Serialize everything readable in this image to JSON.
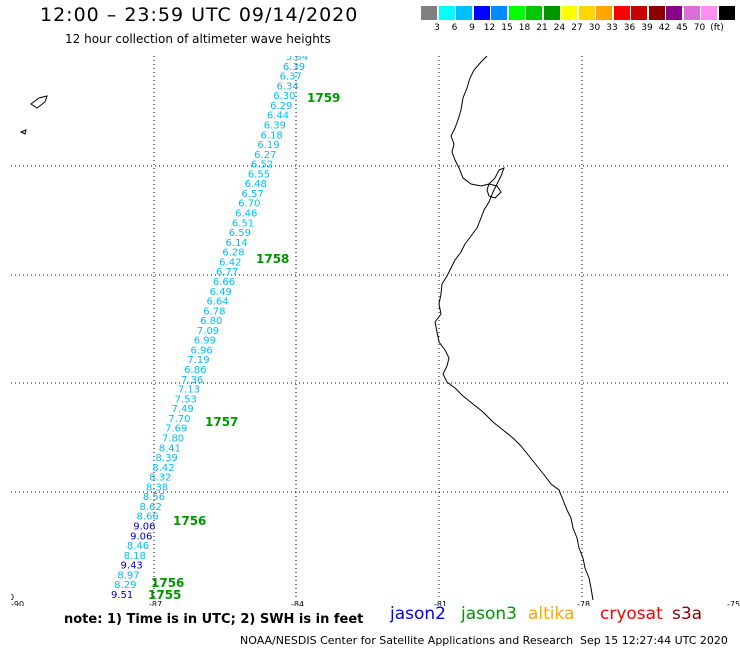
{
  "header": {
    "title": "12:00 – 23:59 UTC 09/14/2020",
    "subtitle": "12 hour collection of altimeter wave heights"
  },
  "legend": {
    "colors": [
      "#808080",
      "#00ffff",
      "#00bfff",
      "#0000ff",
      "#008bff",
      "#00ff00",
      "#00c800",
      "#009600",
      "#ffff00",
      "#ffd700",
      "#ffa500",
      "#ff0000",
      "#c80000",
      "#8b0000",
      "#8b008b",
      "#da70d6",
      "#ff8cf0",
      "#000000"
    ],
    "labels": [
      "3",
      "6",
      "9",
      "12",
      "15",
      "18",
      "21",
      "24",
      "27",
      "30",
      "33",
      "36",
      "39",
      "42",
      "45",
      "70",
      "(ft)"
    ]
  },
  "map": {
    "x_ticks": [
      "-90",
      "-87",
      "-84",
      "-81",
      "-78",
      "-75"
    ],
    "y_ticks": [
      "0",
      "-2",
      "-4",
      "-6",
      "-8",
      "-10"
    ],
    "track_values": [
      {
        "v": "5.84",
        "c": "#00bfff"
      },
      {
        "v": "6.39",
        "c": "#00bfff"
      },
      {
        "v": "6.37",
        "c": "#00bfff"
      },
      {
        "v": "6.34",
        "c": "#00bfff"
      },
      {
        "v": "6.30",
        "c": "#00bfff"
      },
      {
        "v": "6.29",
        "c": "#00bfff"
      },
      {
        "v": "6.44",
        "c": "#00bfff"
      },
      {
        "v": "6.39",
        "c": "#00bfff"
      },
      {
        "v": "6.18",
        "c": "#00bfff"
      },
      {
        "v": "6.19",
        "c": "#00bfff"
      },
      {
        "v": "6.27",
        "c": "#00bfff"
      },
      {
        "v": "6.52",
        "c": "#00bfff"
      },
      {
        "v": "6.55",
        "c": "#00bfff"
      },
      {
        "v": "6.48",
        "c": "#00bfff"
      },
      {
        "v": "6.57",
        "c": "#00bfff"
      },
      {
        "v": "6.70",
        "c": "#00bfff"
      },
      {
        "v": "6.46",
        "c": "#00bfff"
      },
      {
        "v": "6.51",
        "c": "#00bfff"
      },
      {
        "v": "6.59",
        "c": "#00bfff"
      },
      {
        "v": "6.14",
        "c": "#00bfff"
      },
      {
        "v": "6.28",
        "c": "#00bfff"
      },
      {
        "v": "6.42",
        "c": "#00bfff"
      },
      {
        "v": "6.77",
        "c": "#00bfff"
      },
      {
        "v": "6.66",
        "c": "#00bfff"
      },
      {
        "v": "6.49",
        "c": "#00bfff"
      },
      {
        "v": "6.64",
        "c": "#00bfff"
      },
      {
        "v": "6.78",
        "c": "#00bfff"
      },
      {
        "v": "6.80",
        "c": "#00bfff"
      },
      {
        "v": "7.09",
        "c": "#00bfff"
      },
      {
        "v": "6.99",
        "c": "#00bfff"
      },
      {
        "v": "6.96",
        "c": "#00bfff"
      },
      {
        "v": "7.19",
        "c": "#00bfff"
      },
      {
        "v": "6.86",
        "c": "#00bfff"
      },
      {
        "v": "7.36",
        "c": "#00bfff"
      },
      {
        "v": "7.13",
        "c": "#00bfff"
      },
      {
        "v": "7.53",
        "c": "#00bfff"
      },
      {
        "v": "7.49",
        "c": "#00bfff"
      },
      {
        "v": "7.70",
        "c": "#00bfff"
      },
      {
        "v": "7.69",
        "c": "#00bfff"
      },
      {
        "v": "7.80",
        "c": "#00bfff"
      },
      {
        "v": "8.41",
        "c": "#00bfff"
      },
      {
        "v": "8.39",
        "c": "#00bfff"
      },
      {
        "v": "8.42",
        "c": "#00bfff"
      },
      {
        "v": "8.32",
        "c": "#00bfff"
      },
      {
        "v": "8.38",
        "c": "#00bfff"
      },
      {
        "v": "8.56",
        "c": "#00bfff"
      },
      {
        "v": "8.62",
        "c": "#00bfff"
      },
      {
        "v": "8.66",
        "c": "#00bfff"
      },
      {
        "v": "9.06",
        "c": "#0000cc"
      },
      {
        "v": "9.06",
        "c": "#0000cc"
      },
      {
        "v": "8.46",
        "c": "#00bfff"
      },
      {
        "v": "8.18",
        "c": "#00bfff"
      },
      {
        "v": "9.43",
        "c": "#0000cc"
      },
      {
        "v": "8.97",
        "c": "#00bfff"
      },
      {
        "v": "8.29",
        "c": "#00bfff"
      },
      {
        "v": "9.51",
        "c": "#0000cc"
      }
    ],
    "time_labels": [
      "1759",
      "1758",
      "1757",
      "1756",
      "1756",
      "1755"
    ]
  },
  "footer": {
    "note": "note: 1) Time is in UTC; 2) SWH is in feet",
    "satellites": [
      {
        "name": "jason2",
        "color": "#0000ff"
      },
      {
        "name": "jason3",
        "color": "#009600"
      },
      {
        "name": "altika",
        "color": "#ffa500"
      },
      {
        "name": "cryosat",
        "color": "#ff0000"
      },
      {
        "name": "s3a",
        "color": "#8b0000"
      }
    ],
    "credit": "NOAA/NESDIS Center for Satellite Applications and Research",
    "timestamp": "Sep 15 12:27:44 UTC 2020"
  }
}
